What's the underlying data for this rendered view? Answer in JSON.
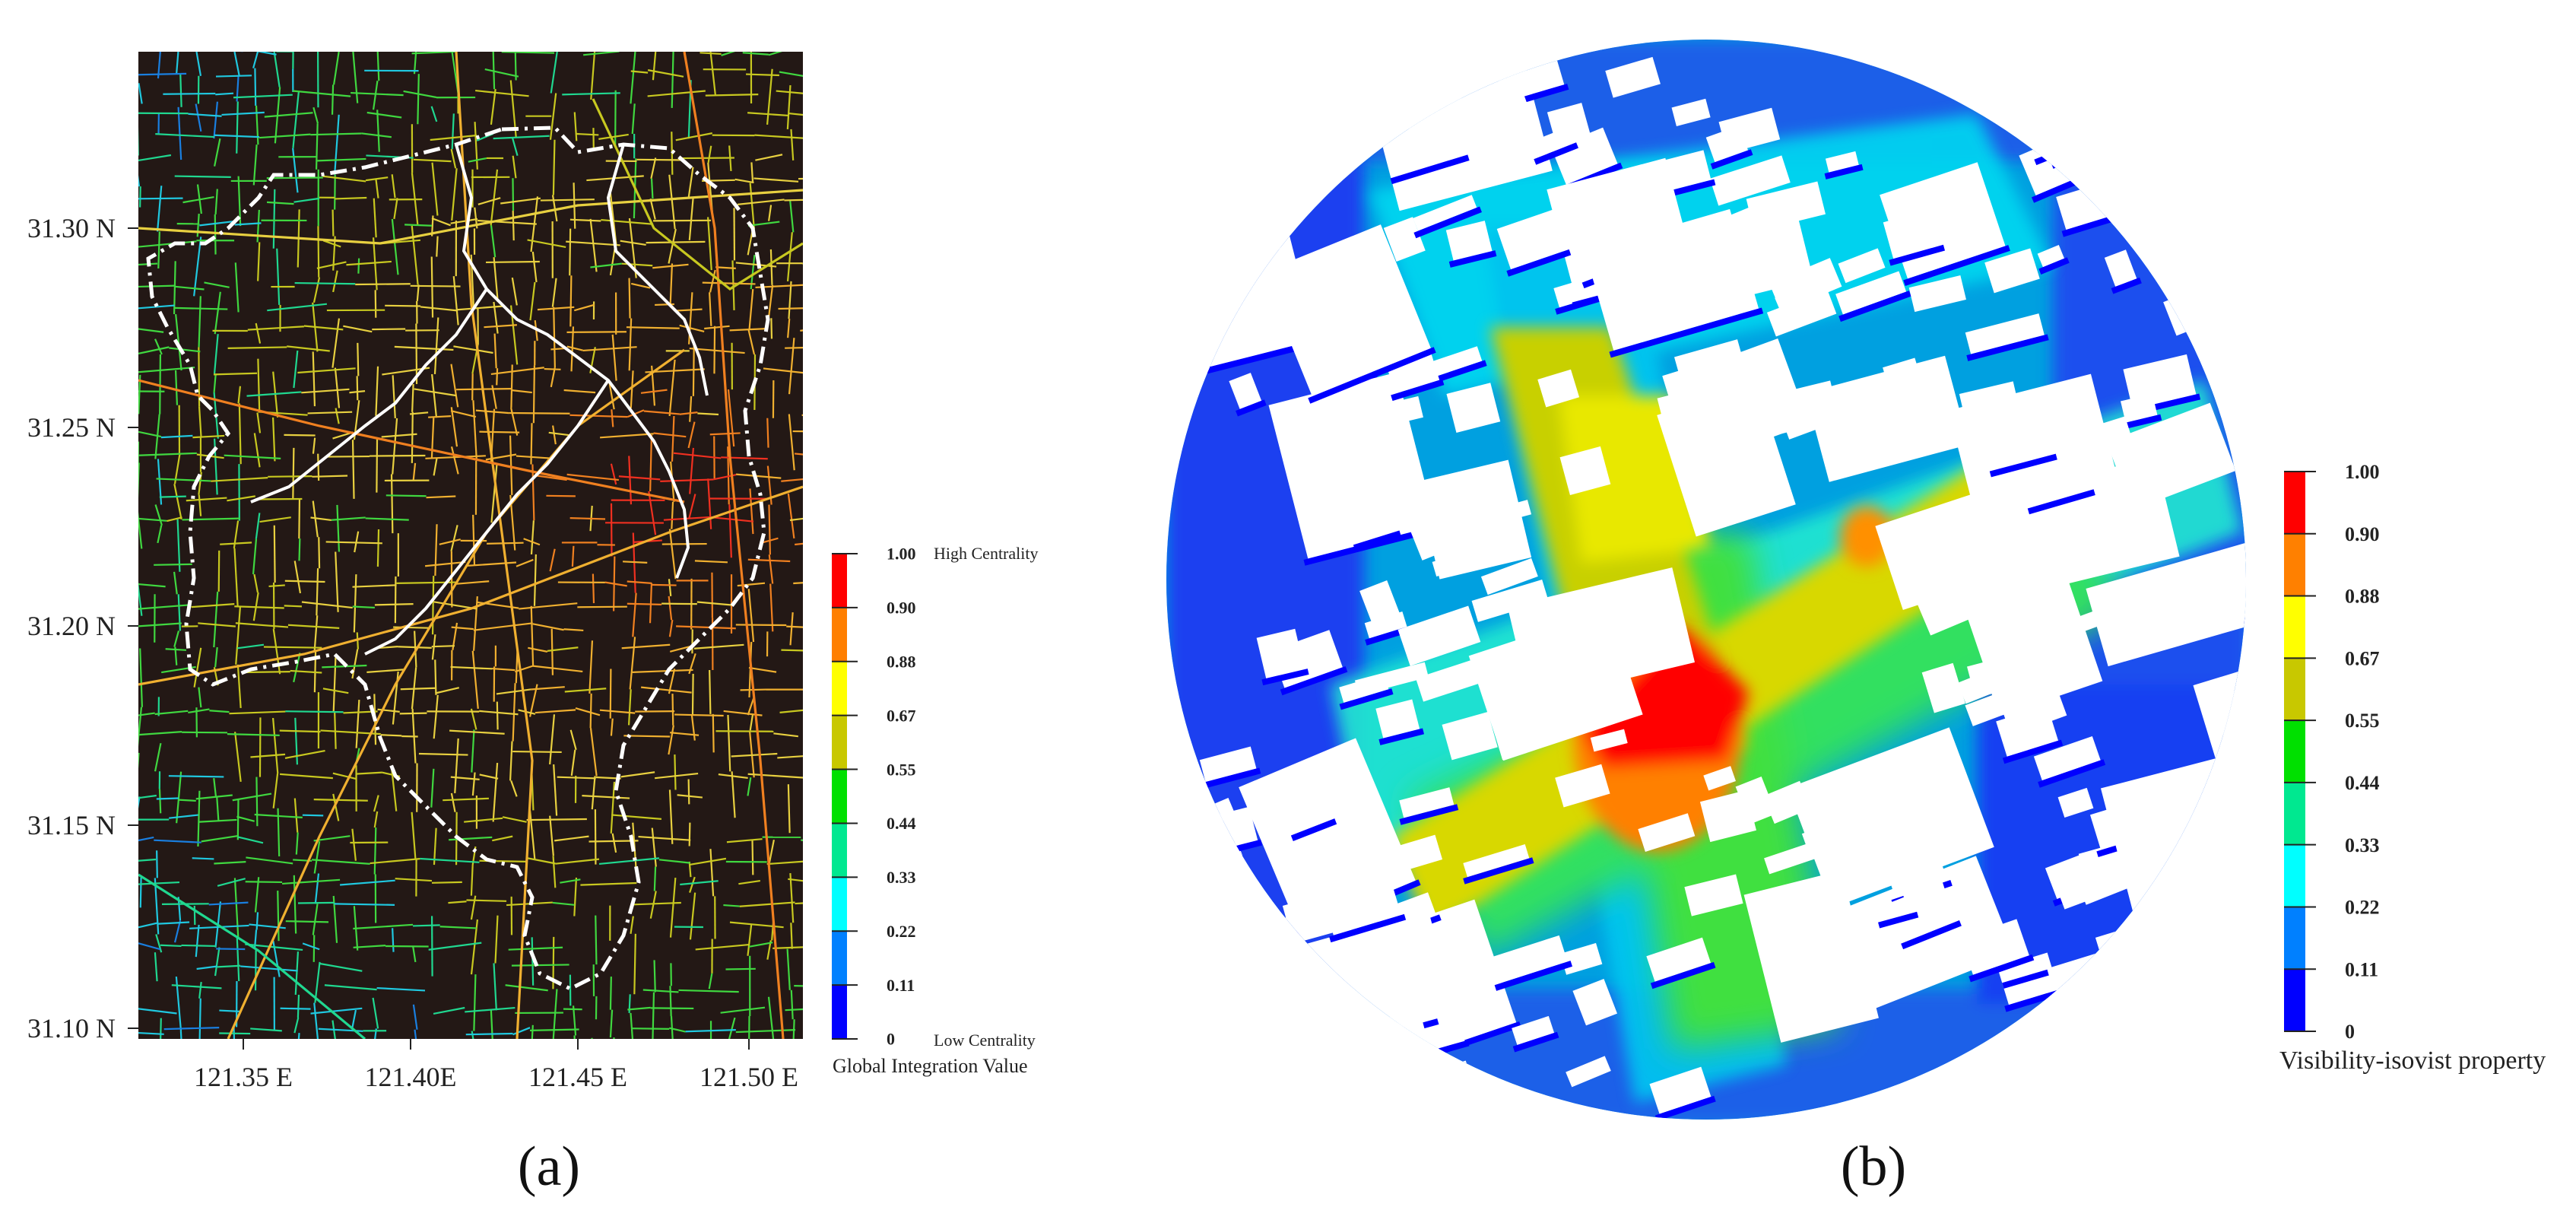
{
  "panel_a": {
    "label": "(a)",
    "map": {
      "background": "#231815",
      "boundary_color": "#ffffff",
      "lat_ticks": [
        "31.30 N",
        "31.25 N",
        "31.20 N",
        "31.15 N",
        "31.10 N"
      ],
      "lon_ticks": [
        "121.35 E",
        "121.40E",
        "121.45 E",
        "121.50 E"
      ]
    },
    "legend": {
      "title": "Global Integration Value",
      "high_label": "High Centrality",
      "low_label": "Low Centrality",
      "ticks": [
        "1.00",
        "0.90",
        "0.88",
        "0.67",
        "0.55",
        "0.44",
        "0.33",
        "0.22",
        "0.11",
        "0"
      ],
      "colors": [
        "#ff0000",
        "#ff7f00",
        "#ffff00",
        "#c8c800",
        "#00e000",
        "#00e890",
        "#00ffff",
        "#0080ff",
        "#0000ff"
      ]
    }
  },
  "panel_b": {
    "label": "(b)",
    "legend": {
      "title": "Visibility-isovist property",
      "ticks": [
        "1.00",
        "0.90",
        "0.88",
        "0.67",
        "0.55",
        "0.44",
        "0.33",
        "0.22",
        "0.11",
        "0"
      ],
      "colors": [
        "#ff0000",
        "#ff8000",
        "#ffff00",
        "#c8c800",
        "#00e000",
        "#00e890",
        "#00ffff",
        "#0080ff",
        "#0000ff"
      ]
    },
    "isovist": {
      "base_color": "#00a0e0",
      "building_color": "#ffffff",
      "fringe_color": "#0000ff"
    }
  }
}
